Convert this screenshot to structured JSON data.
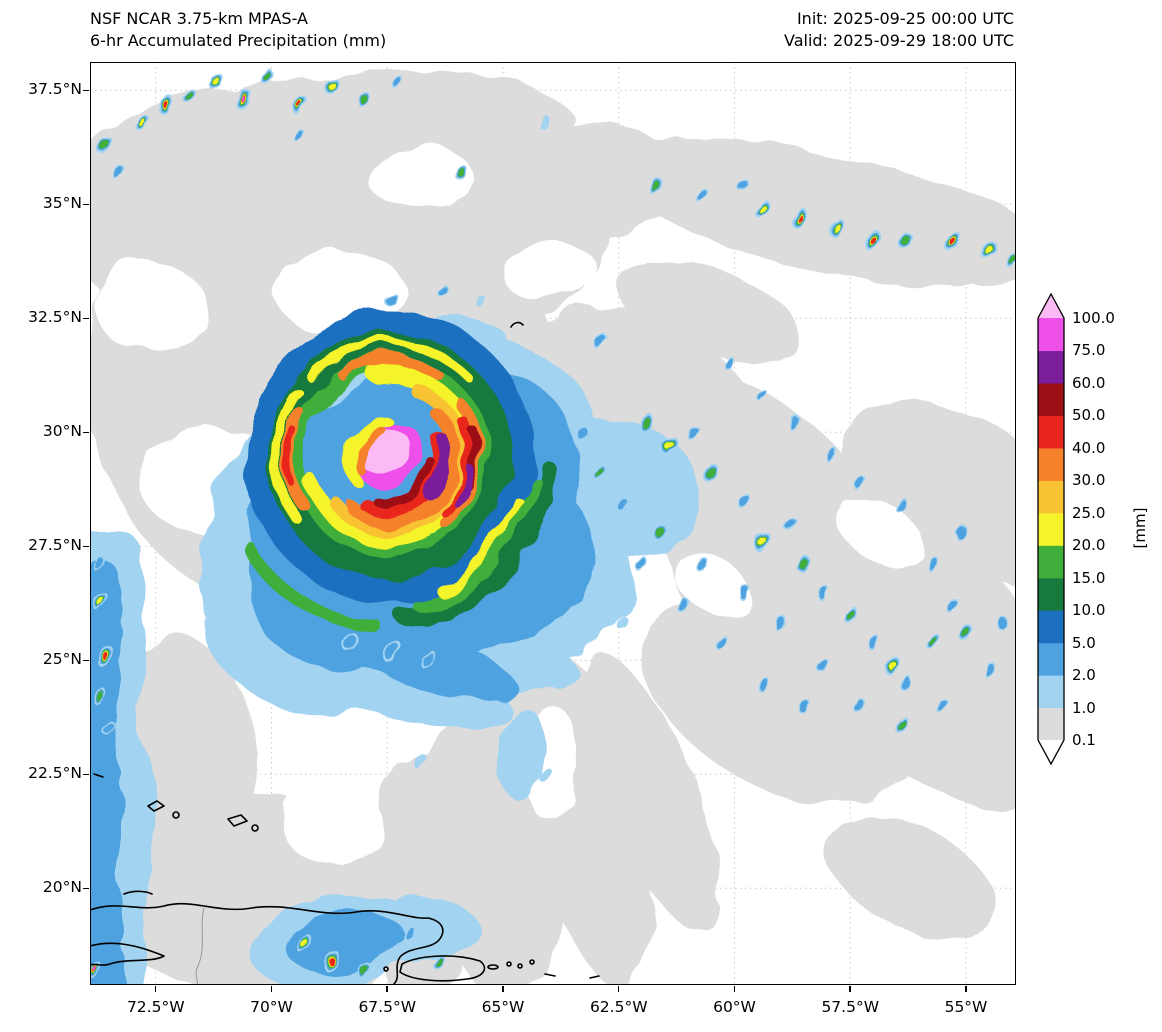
{
  "header": {
    "title_line1": "NSF NCAR 3.75-km MPAS-A",
    "title_line2": "6-hr Accumulated Precipitation (mm)",
    "init_label": "Init: 2025-09-25 00:00 UTC",
    "valid_label": "Valid: 2025-09-29 18:00 UTC"
  },
  "chart_data": {
    "type": "heatmap",
    "title": "NSF NCAR 3.75-km MPAS-A 6-hr Accumulated Precipitation (mm)",
    "init_time": "2025-09-25 00:00 UTC",
    "valid_time": "2025-09-29 18:00 UTC",
    "x_axis": {
      "label": "longitude",
      "ticks": [
        {
          "value": 72.5,
          "label": "72.5°W"
        },
        {
          "value": 70.0,
          "label": "70°W"
        },
        {
          "value": 67.5,
          "label": "67.5°W"
        },
        {
          "value": 65.0,
          "label": "65°W"
        },
        {
          "value": 62.5,
          "label": "62.5°W"
        },
        {
          "value": 60.0,
          "label": "60°W"
        },
        {
          "value": 57.5,
          "label": "57.5°W"
        },
        {
          "value": 55.0,
          "label": "55°W"
        }
      ]
    },
    "y_axis": {
      "label": "latitude",
      "ticks": [
        {
          "value": 37.5,
          "label": "37.5°N"
        },
        {
          "value": 35.0,
          "label": "35°N"
        },
        {
          "value": 32.5,
          "label": "32.5°N"
        },
        {
          "value": 30.0,
          "label": "30°N"
        },
        {
          "value": 27.5,
          "label": "27.5°N"
        },
        {
          "value": 25.0,
          "label": "25°N"
        },
        {
          "value": 22.5,
          "label": "22.5°N"
        },
        {
          "value": 20.0,
          "label": "20°N"
        }
      ]
    },
    "lon_extent_deg_w": [
      73.92,
      53.92
    ],
    "lat_extent_deg_n": [
      17.88,
      38.12
    ],
    "grid": true,
    "palette": {
      "gray": "#dcdcdc",
      "blue1": "#a2d3f0",
      "blue2": "#4fa2e0",
      "blue5": "#1d6fc0",
      "green10": "#17793c",
      "green15": "#3fae3b",
      "yellow20": "#f5f32b",
      "amber25": "#f8c233",
      "orange30": "#f5822a",
      "red40": "#e8251f",
      "darkred50": "#9c0f14",
      "purple60": "#7a1e9c",
      "magenta75": "#ee4fe8",
      "pink100": "#fbb9f5",
      "white": "#ffffff"
    },
    "colorbar": {
      "units_label": "[mm]",
      "top_label": "100.0",
      "over_color_key": "pink100",
      "under_color_key": "white",
      "levels_bottom_to_top": [
        {
          "bottom": "0.1",
          "color_key": "gray"
        },
        {
          "bottom": "1.0",
          "color_key": "blue1"
        },
        {
          "bottom": "2.0",
          "color_key": "blue2"
        },
        {
          "bottom": "5.0",
          "color_key": "blue5"
        },
        {
          "bottom": "10.0",
          "color_key": "green10"
        },
        {
          "bottom": "15.0",
          "color_key": "green15"
        },
        {
          "bottom": "20.0",
          "color_key": "yellow20"
        },
        {
          "bottom": "25.0",
          "color_key": "amber25"
        },
        {
          "bottom": "30.0",
          "color_key": "orange30"
        },
        {
          "bottom": "40.0",
          "color_key": "red40"
        },
        {
          "bottom": "50.0",
          "color_key": "darkred50"
        },
        {
          "bottom": "60.0",
          "color_key": "purple60"
        },
        {
          "bottom": "75.0",
          "color_key": "magenta75"
        }
      ]
    },
    "features": {
      "tropical_cyclone": {
        "center_lon_deg_w": 67.6,
        "center_lat_deg_n": 29.6,
        "peak_precip_mm": "> 100"
      },
      "description": "Spiral-banded tropical cyclone near 29.6N 67.6W with >100 mm core; widespread 0.1-1 mm stratiform areas; scattered convective cells along a NE band near 34-35N and across the eastern half of the domain; coastlines of Hispaniola and Puerto Rico at bottom."
    },
    "cells": [
      [
        73.6,
        36.3,
        10,
        3
      ],
      [
        72.8,
        36.8,
        9,
        4
      ],
      [
        72.3,
        37.2,
        10,
        5
      ],
      [
        71.8,
        37.4,
        8,
        3
      ],
      [
        71.2,
        37.7,
        9,
        4
      ],
      [
        70.6,
        37.3,
        11,
        6
      ],
      [
        70.1,
        37.8,
        8,
        3
      ],
      [
        69.4,
        37.2,
        10,
        5
      ],
      [
        68.7,
        37.6,
        9,
        4
      ],
      [
        68.0,
        37.3,
        8,
        3
      ],
      [
        67.3,
        37.7,
        7,
        2
      ],
      [
        69.4,
        36.5,
        7,
        2
      ],
      [
        73.3,
        35.7,
        8,
        2
      ],
      [
        65.9,
        35.7,
        8,
        3
      ],
      [
        64.1,
        36.8,
        7,
        1
      ],
      [
        67.4,
        32.9,
        8,
        2
      ],
      [
        66.3,
        33.1,
        7,
        2
      ],
      [
        65.5,
        32.9,
        6,
        1
      ],
      [
        61.7,
        35.4,
        9,
        3
      ],
      [
        60.7,
        35.2,
        8,
        2
      ],
      [
        59.8,
        35.4,
        7,
        2
      ],
      [
        59.4,
        34.9,
        10,
        4
      ],
      [
        58.6,
        34.7,
        11,
        5
      ],
      [
        57.8,
        34.5,
        10,
        4
      ],
      [
        57.0,
        34.2,
        11,
        5
      ],
      [
        56.3,
        34.2,
        9,
        3
      ],
      [
        55.3,
        34.2,
        11,
        5
      ],
      [
        54.5,
        34.0,
        10,
        4
      ],
      [
        54.0,
        33.8,
        9,
        3
      ],
      [
        62.9,
        32.0,
        9,
        2
      ],
      [
        61.9,
        30.2,
        10,
        3
      ],
      [
        61.4,
        29.7,
        11,
        4
      ],
      [
        60.9,
        30.0,
        8,
        2
      ],
      [
        60.5,
        29.1,
        10,
        3
      ],
      [
        59.8,
        28.5,
        8,
        2
      ],
      [
        59.4,
        27.6,
        11,
        4
      ],
      [
        58.8,
        28.0,
        8,
        2
      ],
      [
        58.5,
        27.1,
        9,
        3
      ],
      [
        58.1,
        26.5,
        8,
        2
      ],
      [
        57.5,
        26.0,
        9,
        3
      ],
      [
        57.0,
        25.4,
        8,
        2
      ],
      [
        56.6,
        24.9,
        10,
        4
      ],
      [
        56.3,
        24.5,
        8,
        2
      ],
      [
        55.7,
        25.4,
        9,
        3
      ],
      [
        55.3,
        26.2,
        8,
        2
      ],
      [
        55.0,
        25.6,
        9,
        3
      ],
      [
        54.5,
        24.8,
        8,
        2
      ],
      [
        54.2,
        25.8,
        7,
        2
      ],
      [
        55.5,
        24.0,
        8,
        2
      ],
      [
        56.4,
        23.6,
        9,
        3
      ],
      [
        57.3,
        24.0,
        8,
        2
      ],
      [
        58.1,
        24.9,
        8,
        2
      ],
      [
        59.0,
        25.8,
        8,
        2
      ],
      [
        59.8,
        26.5,
        8,
        2
      ],
      [
        60.7,
        27.1,
        8,
        2
      ],
      [
        61.6,
        27.8,
        9,
        3
      ],
      [
        62.4,
        28.4,
        8,
        2
      ],
      [
        62.9,
        29.1,
        9,
        3
      ],
      [
        63.3,
        30.0,
        8,
        2
      ],
      [
        62.0,
        27.1,
        8,
        2
      ],
      [
        61.1,
        26.2,
        8,
        2
      ],
      [
        62.4,
        25.8,
        7,
        1
      ],
      [
        60.3,
        25.4,
        8,
        2
      ],
      [
        59.4,
        24.5,
        8,
        2
      ],
      [
        58.5,
        24.0,
        8,
        2
      ],
      [
        55.7,
        27.1,
        8,
        2
      ],
      [
        55.1,
        27.8,
        8,
        2
      ],
      [
        56.4,
        28.4,
        8,
        2
      ],
      [
        57.3,
        28.9,
        8,
        2
      ],
      [
        57.9,
        29.5,
        8,
        2
      ],
      [
        58.7,
        30.2,
        8,
        2
      ],
      [
        59.4,
        30.8,
        7,
        2
      ],
      [
        60.1,
        31.5,
        7,
        2
      ],
      [
        73.7,
        27.1,
        8,
        2
      ],
      [
        73.7,
        26.3,
        10,
        4
      ],
      [
        73.6,
        25.1,
        11,
        5
      ],
      [
        73.7,
        24.2,
        9,
        3
      ],
      [
        73.5,
        23.5,
        8,
        2
      ],
      [
        66.8,
        22.8,
        8,
        1
      ],
      [
        64.7,
        23.3,
        8,
        1
      ],
      [
        64.1,
        22.5,
        8,
        1
      ],
      [
        67.4,
        25.2,
        12,
        2
      ],
      [
        68.3,
        25.4,
        10,
        2
      ],
      [
        66.6,
        25.0,
        10,
        2
      ],
      [
        69.3,
        18.8,
        10,
        4
      ],
      [
        68.7,
        18.4,
        11,
        5
      ],
      [
        68.0,
        18.2,
        9,
        3
      ],
      [
        67.0,
        19.0,
        8,
        2
      ],
      [
        66.4,
        18.4,
        8,
        3
      ],
      [
        73.8,
        18.2,
        9,
        6
      ]
    ]
  }
}
